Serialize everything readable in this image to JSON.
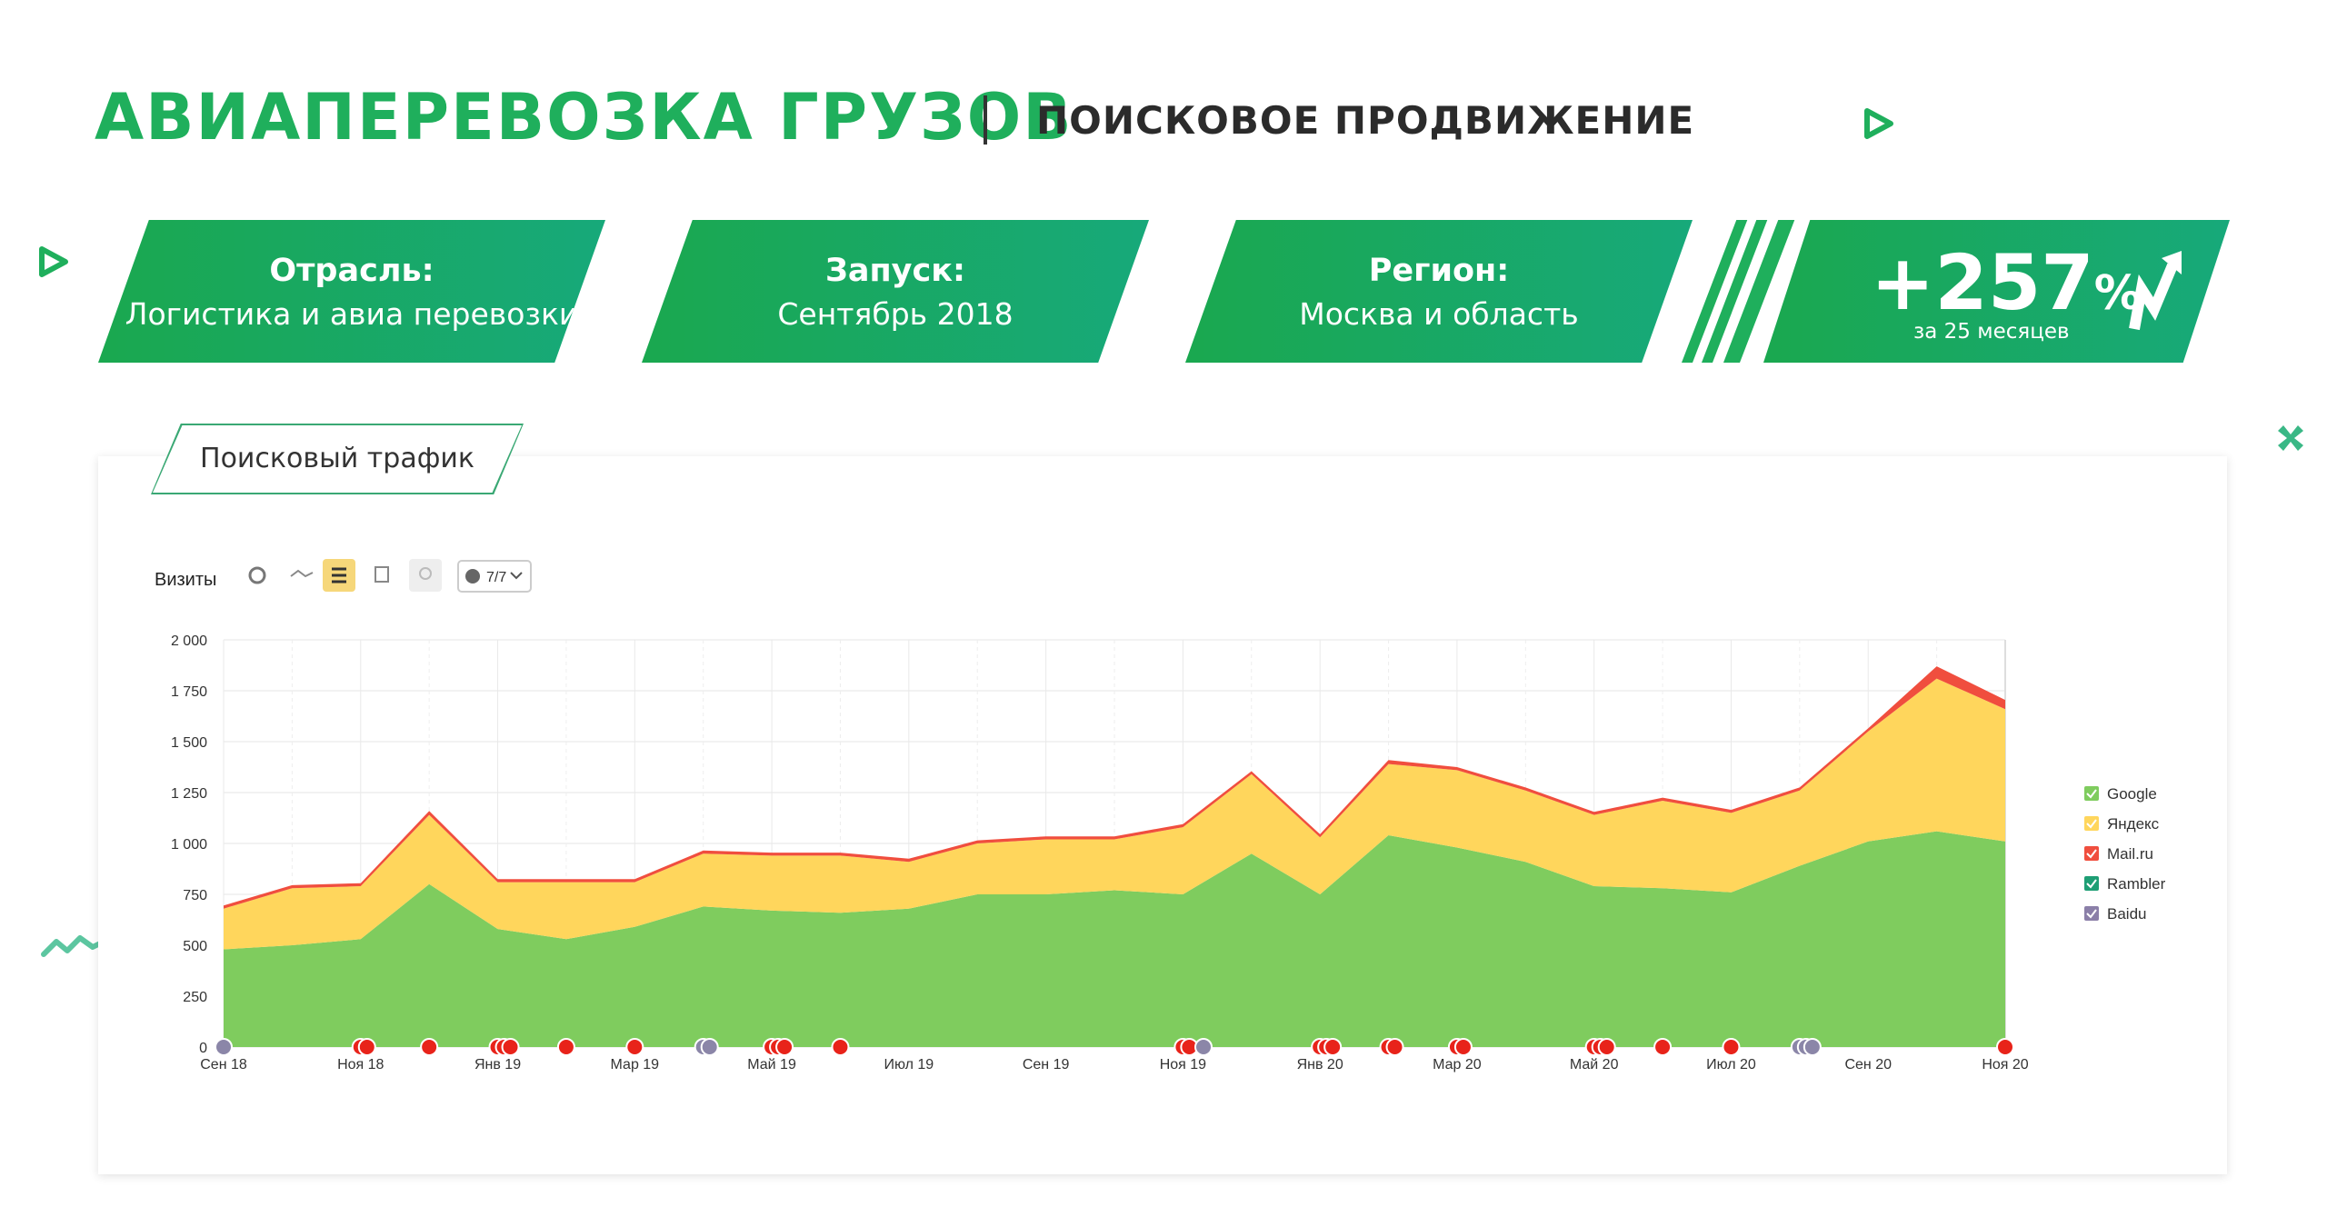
{
  "header": {
    "title": "АВИАПЕРЕВОЗКА ГРУЗОВ",
    "subtitle": "ПОИСКОВОЕ ПРОДВИЖЕНИЕ"
  },
  "cards": [
    {
      "label": "Отрасль:",
      "value": "Логистика и авиа перевозки"
    },
    {
      "label": "Запуск:",
      "value": "Сентябрь 2018"
    },
    {
      "label": "Регион:",
      "value": "Москва и область"
    }
  ],
  "kpi": {
    "value": "+257",
    "unit": "%",
    "caption": "за 25 месяцев"
  },
  "panel": {
    "tab_label": "Поисковый трафик",
    "metric_label": "Визиты",
    "annotations_label": "7/7"
  },
  "colors": {
    "accent": "#1faf5c",
    "google": "#7fcc5e",
    "yandex": "#ffd65c",
    "mailru": "#f04e3e",
    "rambler": "#1e9e74",
    "baidu": "#8b7fa8"
  },
  "chart_data": {
    "type": "area",
    "stacked": true,
    "ylabel": "Визиты",
    "ylim": [
      0,
      2000
    ],
    "yticks": [
      "2 000",
      "1 750",
      "1 500",
      "1 250",
      "1 000",
      "750",
      "500",
      "250",
      "0"
    ],
    "ytick_values": [
      2000,
      1750,
      1500,
      1250,
      1000,
      750,
      500,
      250,
      0
    ],
    "x_tick_labels": [
      "Сен 18",
      "Ноя 18",
      "Янв 19",
      "Мар 19",
      "Май 19",
      "Июл 19",
      "Сен 19",
      "Ноя 19",
      "Янв 20",
      "Мар 20",
      "Май 20",
      "Июл 20",
      "Сен 20",
      "Ноя 20"
    ],
    "x_tick_index": [
      0,
      2,
      4,
      6,
      8,
      10,
      12,
      14,
      16,
      18,
      20,
      22,
      24,
      26
    ],
    "points": 27,
    "series": [
      {
        "name": "Google",
        "values": [
          480,
          500,
          530,
          800,
          580,
          530,
          590,
          690,
          670,
          660,
          680,
          750,
          750,
          770,
          750,
          950,
          750,
          1040,
          980,
          910,
          790,
          780,
          760,
          890,
          1010,
          1060,
          1010
        ]
      },
      {
        "name": "Яндекс",
        "values": [
          200,
          280,
          260,
          340,
          230,
          280,
          220,
          260,
          270,
          280,
          230,
          250,
          270,
          250,
          330,
          390,
          280,
          350,
          380,
          350,
          350,
          430,
          390,
          370,
          540,
          750,
          650
        ]
      },
      {
        "name": "Mail.ru",
        "values": [
          15,
          15,
          15,
          20,
          15,
          15,
          15,
          15,
          15,
          15,
          15,
          15,
          15,
          15,
          15,
          15,
          15,
          20,
          15,
          15,
          15,
          15,
          15,
          15,
          15,
          60,
          45
        ]
      },
      {
        "name": "Rambler",
        "values": [
          0,
          0,
          0,
          0,
          0,
          0,
          0,
          0,
          0,
          0,
          0,
          0,
          0,
          0,
          0,
          0,
          0,
          0,
          0,
          0,
          0,
          0,
          0,
          0,
          0,
          0,
          0
        ]
      },
      {
        "name": "Baidu",
        "values": [
          0,
          0,
          0,
          0,
          0,
          0,
          0,
          0,
          0,
          0,
          0,
          0,
          0,
          0,
          0,
          0,
          0,
          0,
          0,
          0,
          0,
          0,
          0,
          0,
          0,
          0,
          0
        ]
      }
    ],
    "legend": [
      "Google",
      "Яндекс",
      "Mail.ru",
      "Rambler",
      "Baidu"
    ],
    "legend_position": "right",
    "markers": [
      {
        "index": 0,
        "kind": "comment",
        "count": 1
      },
      {
        "index": 2,
        "kind": "note",
        "count": 2
      },
      {
        "index": 3,
        "kind": "note",
        "count": 1
      },
      {
        "index": 4,
        "kind": "note",
        "count": 3
      },
      {
        "index": 5,
        "kind": "note",
        "count": 1
      },
      {
        "index": 6,
        "kind": "note",
        "count": 1
      },
      {
        "index": 7,
        "kind": "comment",
        "count": 2
      },
      {
        "index": 8,
        "kind": "note",
        "count": 3
      },
      {
        "index": 9,
        "kind": "note",
        "count": 1
      },
      {
        "index": 14,
        "kind": "note",
        "count": 2
      },
      {
        "index": 14.3,
        "kind": "comment",
        "count": 1
      },
      {
        "index": 16,
        "kind": "note",
        "count": 3
      },
      {
        "index": 17,
        "kind": "note",
        "count": 2
      },
      {
        "index": 18,
        "kind": "note",
        "count": 2
      },
      {
        "index": 20,
        "kind": "note",
        "count": 3
      },
      {
        "index": 21,
        "kind": "note",
        "count": 1
      },
      {
        "index": 22,
        "kind": "note",
        "count": 1
      },
      {
        "index": 23,
        "kind": "comment",
        "count": 3
      },
      {
        "index": 26,
        "kind": "note",
        "count": 1
      }
    ]
  }
}
